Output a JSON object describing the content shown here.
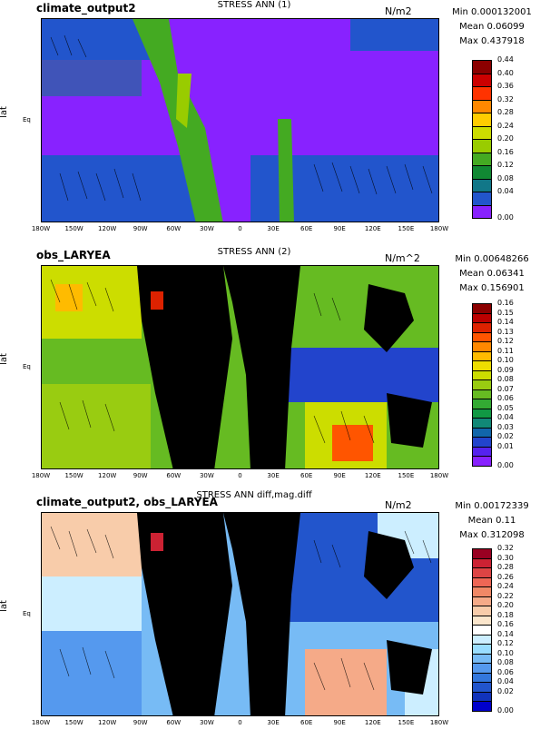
{
  "panels": [
    {
      "title_left": "climate_output2",
      "title_center": "STRESS ANN (1)",
      "units": "N/m2",
      "stats": {
        "min": "Min 0.000132001",
        "mean": "Mean 0.06099",
        "max": "Max 0.437918"
      },
      "ylabel": "lat",
      "eq_label": "Eq",
      "xticks": [
        "180W",
        "150W",
        "120W",
        "90W",
        "60W",
        "30W",
        "0",
        "30E",
        "60E",
        "90E",
        "120E",
        "150E",
        "180W"
      ],
      "colorbar": {
        "labels": [
          "0.44",
          "0.40",
          "0.36",
          "0.32",
          "0.28",
          "0.24",
          "0.20",
          "0.16",
          "0.12",
          "0.08",
          "0.04",
          "0.00"
        ],
        "colors": [
          "#8b0000",
          "#cc0000",
          "#ff3300",
          "#ff8800",
          "#ffcc00",
          "#ccdd00",
          "#99cc00",
          "#44aa22",
          "#118833",
          "#117788",
          "#2255cc",
          "#8822ff"
        ]
      }
    },
    {
      "title_left": "obs_LARYEA",
      "title_center": "STRESS ANN (2)",
      "units": "N/m^2",
      "stats": {
        "min": "Min 0.00648266",
        "mean": "Mean 0.06341",
        "max": "Max 0.156901"
      },
      "ylabel": "lat",
      "eq_label": "Eq",
      "xticks": [
        "180W",
        "150W",
        "120W",
        "90W",
        "60W",
        "30W",
        "0",
        "30E",
        "60E",
        "90E",
        "120E",
        "150E",
        "180W"
      ],
      "colorbar": {
        "labels": [
          "0.16",
          "0.15",
          "0.14",
          "0.13",
          "0.12",
          "0.11",
          "0.10",
          "0.09",
          "0.08",
          "0.07",
          "0.06",
          "0.05",
          "0.04",
          "0.03",
          "0.02",
          "0.01",
          "0.00"
        ],
        "colors": [
          "#8b0000",
          "#bb0000",
          "#dd2200",
          "#ff5500",
          "#ff8800",
          "#ffbb00",
          "#eedd00",
          "#ccdd00",
          "#99cc11",
          "#66bb22",
          "#33aa33",
          "#119944",
          "#118877",
          "#1166aa",
          "#2244cc",
          "#5522ee",
          "#8822ff"
        ]
      }
    },
    {
      "title_left": "climate_output2, obs_LARYEA",
      "title_center": "STRESS ANN diff,mag.diff",
      "units": "N/m2",
      "stats": {
        "min": "Min 0.00172339",
        "mean": "Mean 0.11",
        "max": "Max 0.312098"
      },
      "ylabel": "lat",
      "eq_label": "Eq",
      "xticks": [
        "180W",
        "150W",
        "120W",
        "90W",
        "60W",
        "30W",
        "0",
        "30E",
        "60E",
        "90E",
        "120E",
        "150E",
        "180W"
      ],
      "colorbar": {
        "labels": [
          "0.32",
          "0.30",
          "0.28",
          "0.26",
          "0.24",
          "0.22",
          "0.20",
          "0.18",
          "0.16",
          "0.14",
          "0.12",
          "0.10",
          "0.08",
          "0.06",
          "0.04",
          "0.02",
          "0.00"
        ],
        "colors": [
          "#990022",
          "#cc2233",
          "#dd4444",
          "#ee6655",
          "#f08866",
          "#f5aa88",
          "#f8ccaa",
          "#fbe6cc",
          "#ffffff",
          "#cceeff",
          "#99ddff",
          "#77bbf5",
          "#5599ee",
          "#3377dd",
          "#2255cc",
          "#1133bb",
          "#0000cc"
        ]
      }
    }
  ],
  "chart_data": [
    {
      "type": "heatmap",
      "title": "STRESS ANN (1)",
      "subtitle": "climate_output2",
      "units": "N/m2",
      "ylabel": "lat",
      "x_ticks": [
        "180W",
        "150W",
        "120W",
        "90W",
        "60W",
        "30W",
        "0",
        "30E",
        "60E",
        "90E",
        "120E",
        "150E",
        "180W"
      ],
      "colorbar_range": [
        0.0,
        0.44
      ],
      "stats": {
        "min": 0.000132001,
        "mean": 0.06099,
        "max": 0.437918
      }
    },
    {
      "type": "heatmap",
      "title": "STRESS ANN (2)",
      "subtitle": "obs_LARYEA",
      "units": "N/m^2",
      "ylabel": "lat",
      "x_ticks": [
        "180W",
        "150W",
        "120W",
        "90W",
        "60W",
        "30W",
        "0",
        "30E",
        "60E",
        "90E",
        "120E",
        "150E",
        "180W"
      ],
      "colorbar_range": [
        0.0,
        0.16
      ],
      "stats": {
        "min": 0.00648266,
        "mean": 0.06341,
        "max": 0.156901
      }
    },
    {
      "type": "heatmap",
      "title": "STRESS ANN diff,mag.diff",
      "subtitle": "climate_output2, obs_LARYEA",
      "units": "N/m2",
      "ylabel": "lat",
      "x_ticks": [
        "180W",
        "150W",
        "120W",
        "90W",
        "60W",
        "30W",
        "0",
        "30E",
        "60E",
        "90E",
        "120E",
        "150E",
        "180W"
      ],
      "colorbar_range": [
        0.0,
        0.32
      ],
      "stats": {
        "min": 0.00172339,
        "mean": 0.11,
        "max": 0.312098
      }
    }
  ]
}
